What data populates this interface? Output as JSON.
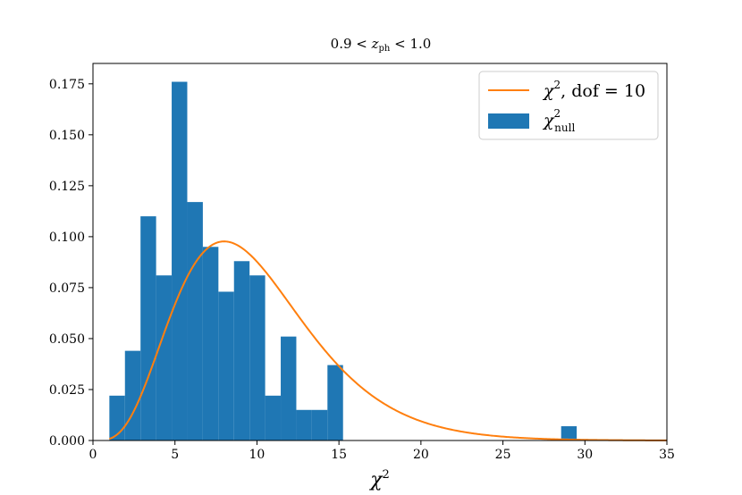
{
  "chart_data": {
    "type": "bar",
    "title": "0.9 < z_ph < 1.0",
    "title_parts": {
      "pre": "0.9 < ",
      "var": "z",
      "sub": "ph",
      "post": " < 1.0"
    },
    "xlabel": "χ",
    "xlabel_sup": "2",
    "ylabel": "",
    "xlim": [
      0,
      35
    ],
    "ylim": [
      0,
      0.185
    ],
    "x_ticks": [
      0,
      5,
      10,
      15,
      20,
      25,
      30,
      35
    ],
    "y_ticks": [
      0.0,
      0.025,
      0.05,
      0.075,
      0.1,
      0.125,
      0.15,
      0.175
    ],
    "grid": false,
    "legend_position": "top-right",
    "colors": {
      "histogram": "#1f77b4",
      "curve": "#ff7f0e"
    },
    "series": [
      {
        "name": "χ²_null",
        "legend": {
          "base": "χ",
          "sup": "2",
          "sub": "null"
        },
        "type": "histogram",
        "bin_width": 0.95,
        "bin_starts": [
          1.0,
          1.95,
          2.9,
          3.85,
          4.8,
          5.75,
          6.7,
          7.65,
          8.6,
          9.55,
          10.5,
          11.45,
          12.4,
          13.35,
          14.3,
          28.55
        ],
        "values": [
          0.022,
          0.044,
          0.11,
          0.081,
          0.176,
          0.117,
          0.095,
          0.073,
          0.088,
          0.081,
          0.022,
          0.051,
          0.015,
          0.015,
          0.037,
          0.007
        ]
      },
      {
        "name": "χ², dof = 10",
        "legend": {
          "base": "χ",
          "sup": "2",
          "rest": ", dof = 10"
        },
        "type": "line",
        "dof": 10
      }
    ]
  }
}
